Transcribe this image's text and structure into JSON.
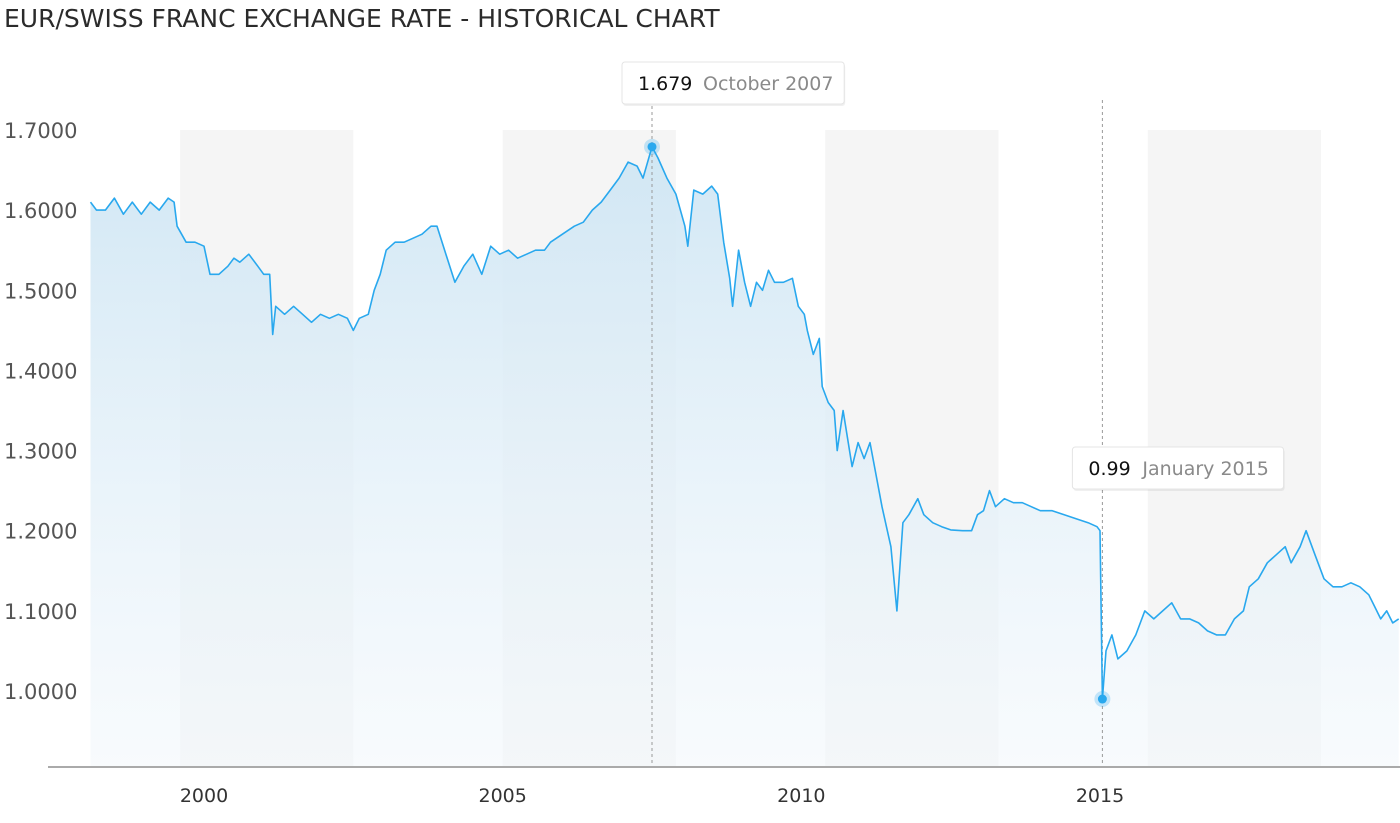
{
  "page": {
    "title": "EUR/SWISS FRANC EXCHANGE RATE - HISTORICAL CHART"
  },
  "colors": {
    "line": "#29a8ee",
    "band": "#f5f5f5",
    "axis": "#aaaaaa",
    "guide": "#999999"
  },
  "chart_data": {
    "type": "area",
    "title": "EUR/SWISS FRANC EXCHANGE RATE - HISTORICAL CHART",
    "xlabel": "",
    "ylabel": "",
    "ylim": [
      0.91,
      1.71
    ],
    "xlim": [
      1998.0,
      2020.0
    ],
    "y_ticks": [
      "1.0000",
      "1.1000",
      "1.2000",
      "1.3000",
      "1.4000",
      "1.5000",
      "1.6000",
      "1.7000"
    ],
    "x_ticks": [
      {
        "value": 2000,
        "label": "2000"
      },
      {
        "value": 2005,
        "label": "2005"
      },
      {
        "value": 2010,
        "label": "2010"
      },
      {
        "value": 2015,
        "label": "2015"
      }
    ],
    "grid": false,
    "shaded_bands": [
      [
        1999.6,
        2002.5
      ],
      [
        2005.0,
        2007.9
      ],
      [
        2010.4,
        2013.3
      ],
      [
        2015.8,
        2018.7
      ]
    ],
    "series": [
      {
        "name": "",
        "points": [
          [
            1998.1,
            1.61
          ],
          [
            1998.2,
            1.6
          ],
          [
            1998.35,
            1.6
          ],
          [
            1998.5,
            1.615
          ],
          [
            1998.65,
            1.595
          ],
          [
            1998.8,
            1.61
          ],
          [
            1998.95,
            1.595
          ],
          [
            1999.1,
            1.61
          ],
          [
            1999.25,
            1.6
          ],
          [
            1999.4,
            1.615
          ],
          [
            1999.5,
            1.61
          ],
          [
            1999.55,
            1.58
          ],
          [
            1999.7,
            1.56
          ],
          [
            1999.85,
            1.56
          ],
          [
            2000.0,
            1.555
          ],
          [
            2000.1,
            1.52
          ],
          [
            2000.25,
            1.52
          ],
          [
            2000.4,
            1.53
          ],
          [
            2000.5,
            1.54
          ],
          [
            2000.6,
            1.535
          ],
          [
            2000.75,
            1.545
          ],
          [
            2000.9,
            1.53
          ],
          [
            2001.0,
            1.52
          ],
          [
            2001.1,
            1.52
          ],
          [
            2001.15,
            1.445
          ],
          [
            2001.2,
            1.48
          ],
          [
            2001.35,
            1.47
          ],
          [
            2001.5,
            1.48
          ],
          [
            2001.65,
            1.47
          ],
          [
            2001.8,
            1.46
          ],
          [
            2001.95,
            1.47
          ],
          [
            2002.1,
            1.465
          ],
          [
            2002.25,
            1.47
          ],
          [
            2002.4,
            1.465
          ],
          [
            2002.5,
            1.45
          ],
          [
            2002.6,
            1.465
          ],
          [
            2002.75,
            1.47
          ],
          [
            2002.85,
            1.5
          ],
          [
            2002.95,
            1.52
          ],
          [
            2003.05,
            1.55
          ],
          [
            2003.2,
            1.56
          ],
          [
            2003.35,
            1.56
          ],
          [
            2003.5,
            1.565
          ],
          [
            2003.65,
            1.57
          ],
          [
            2003.8,
            1.58
          ],
          [
            2003.9,
            1.58
          ],
          [
            2004.05,
            1.545
          ],
          [
            2004.2,
            1.51
          ],
          [
            2004.35,
            1.53
          ],
          [
            2004.5,
            1.545
          ],
          [
            2004.65,
            1.52
          ],
          [
            2004.8,
            1.555
          ],
          [
            2004.95,
            1.545
          ],
          [
            2005.1,
            1.55
          ],
          [
            2005.25,
            1.54
          ],
          [
            2005.4,
            1.545
          ],
          [
            2005.55,
            1.55
          ],
          [
            2005.7,
            1.55
          ],
          [
            2005.8,
            1.56
          ],
          [
            2006.0,
            1.57
          ],
          [
            2006.2,
            1.58
          ],
          [
            2006.35,
            1.585
          ],
          [
            2006.5,
            1.6
          ],
          [
            2006.65,
            1.61
          ],
          [
            2006.8,
            1.625
          ],
          [
            2006.95,
            1.64
          ],
          [
            2007.1,
            1.66
          ],
          [
            2007.25,
            1.655
          ],
          [
            2007.35,
            1.64
          ],
          [
            2007.5,
            1.679
          ],
          [
            2007.6,
            1.665
          ],
          [
            2007.75,
            1.64
          ],
          [
            2007.9,
            1.62
          ],
          [
            2008.05,
            1.58
          ],
          [
            2008.1,
            1.555
          ],
          [
            2008.2,
            1.625
          ],
          [
            2008.35,
            1.62
          ],
          [
            2008.5,
            1.63
          ],
          [
            2008.6,
            1.62
          ],
          [
            2008.7,
            1.56
          ],
          [
            2008.8,
            1.515
          ],
          [
            2008.85,
            1.48
          ],
          [
            2008.95,
            1.55
          ],
          [
            2009.05,
            1.51
          ],
          [
            2009.15,
            1.48
          ],
          [
            2009.25,
            1.51
          ],
          [
            2009.35,
            1.5
          ],
          [
            2009.45,
            1.525
          ],
          [
            2009.55,
            1.51
          ],
          [
            2009.7,
            1.51
          ],
          [
            2009.85,
            1.515
          ],
          [
            2009.95,
            1.48
          ],
          [
            2010.05,
            1.47
          ],
          [
            2010.1,
            1.45
          ],
          [
            2010.2,
            1.42
          ],
          [
            2010.3,
            1.44
          ],
          [
            2010.35,
            1.38
          ],
          [
            2010.45,
            1.36
          ],
          [
            2010.55,
            1.35
          ],
          [
            2010.6,
            1.3
          ],
          [
            2010.7,
            1.35
          ],
          [
            2010.85,
            1.28
          ],
          [
            2010.95,
            1.31
          ],
          [
            2011.05,
            1.29
          ],
          [
            2011.15,
            1.31
          ],
          [
            2011.25,
            1.27
          ],
          [
            2011.35,
            1.23
          ],
          [
            2011.5,
            1.18
          ],
          [
            2011.6,
            1.1
          ],
          [
            2011.7,
            1.21
          ],
          [
            2011.8,
            1.22
          ],
          [
            2011.95,
            1.24
          ],
          [
            2012.05,
            1.22
          ],
          [
            2012.2,
            1.21
          ],
          [
            2012.35,
            1.205
          ],
          [
            2012.5,
            1.201
          ],
          [
            2012.7,
            1.2
          ],
          [
            2012.85,
            1.2
          ],
          [
            2012.95,
            1.22
          ],
          [
            2013.05,
            1.225
          ],
          [
            2013.15,
            1.25
          ],
          [
            2013.25,
            1.23
          ],
          [
            2013.4,
            1.24
          ],
          [
            2013.55,
            1.235
          ],
          [
            2013.7,
            1.235
          ],
          [
            2013.85,
            1.23
          ],
          [
            2014.0,
            1.225
          ],
          [
            2014.2,
            1.225
          ],
          [
            2014.4,
            1.22
          ],
          [
            2014.6,
            1.215
          ],
          [
            2014.8,
            1.21
          ],
          [
            2014.95,
            1.205
          ],
          [
            2015.0,
            1.2
          ],
          [
            2015.04,
            0.99
          ],
          [
            2015.1,
            1.05
          ],
          [
            2015.2,
            1.07
          ],
          [
            2015.3,
            1.04
          ],
          [
            2015.45,
            1.05
          ],
          [
            2015.6,
            1.07
          ],
          [
            2015.75,
            1.1
          ],
          [
            2015.9,
            1.09
          ],
          [
            2016.05,
            1.1
          ],
          [
            2016.2,
            1.11
          ],
          [
            2016.35,
            1.09
          ],
          [
            2016.5,
            1.09
          ],
          [
            2016.65,
            1.085
          ],
          [
            2016.8,
            1.075
          ],
          [
            2016.95,
            1.07
          ],
          [
            2017.1,
            1.07
          ],
          [
            2017.25,
            1.09
          ],
          [
            2017.4,
            1.1
          ],
          [
            2017.5,
            1.13
          ],
          [
            2017.65,
            1.14
          ],
          [
            2017.8,
            1.16
          ],
          [
            2017.95,
            1.17
          ],
          [
            2018.1,
            1.18
          ],
          [
            2018.2,
            1.16
          ],
          [
            2018.35,
            1.18
          ],
          [
            2018.45,
            1.2
          ],
          [
            2018.6,
            1.17
          ],
          [
            2018.75,
            1.14
          ],
          [
            2018.9,
            1.13
          ],
          [
            2019.05,
            1.13
          ],
          [
            2019.2,
            1.135
          ],
          [
            2019.35,
            1.13
          ],
          [
            2019.5,
            1.12
          ],
          [
            2019.6,
            1.105
          ],
          [
            2019.7,
            1.09
          ],
          [
            2019.8,
            1.1
          ],
          [
            2019.9,
            1.085
          ],
          [
            2020.0,
            1.09
          ]
        ]
      }
    ],
    "annotations": [
      {
        "value": "1.679",
        "label": "October 2007",
        "x": 2007.5,
        "y": 1.679
      },
      {
        "value": "0.99",
        "label": "January 2015",
        "x": 2015.04,
        "y": 0.99
      }
    ]
  }
}
